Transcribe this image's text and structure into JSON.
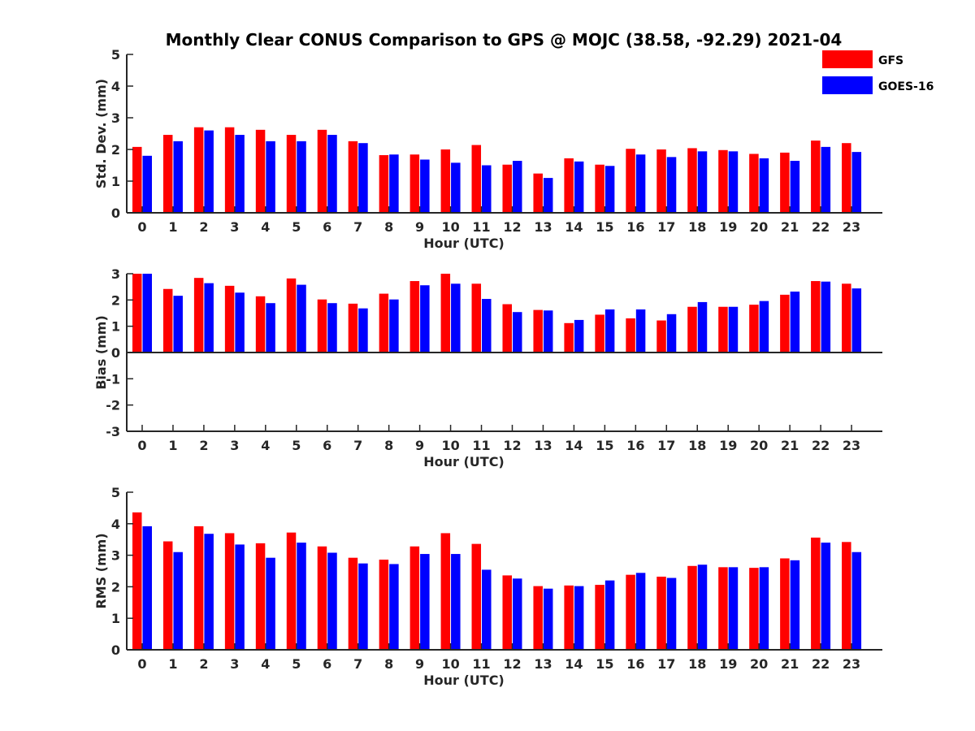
{
  "title": "Monthly Clear CONUS Comparison to GPS @ MOJC (38.58, -92.29) 2021-04",
  "legend": {
    "placement": "top-right",
    "items": [
      {
        "label": "GFS",
        "color": "#ff0000"
      },
      {
        "label": "GOES-16",
        "color": "#0000ff"
      }
    ]
  },
  "chart_data": [
    {
      "type": "bar",
      "ylabel": "Std. Dev. (mm)",
      "xlabel": "Hour (UTC)",
      "ylim": [
        0,
        5
      ],
      "yticks": [
        0,
        1,
        2,
        3,
        4,
        5
      ],
      "categories": [
        "0",
        "1",
        "2",
        "3",
        "4",
        "5",
        "6",
        "7",
        "8",
        "9",
        "10",
        "11",
        "12",
        "13",
        "14",
        "15",
        "16",
        "17",
        "18",
        "19",
        "20",
        "21",
        "22",
        "23"
      ],
      "series": [
        {
          "name": "GFS",
          "color": "#ff0000",
          "values": [
            2.08,
            2.46,
            2.7,
            2.7,
            2.62,
            2.46,
            2.62,
            2.26,
            1.82,
            1.84,
            2.0,
            2.14,
            1.52,
            1.24,
            1.72,
            1.52,
            2.02,
            2.0,
            2.04,
            1.98,
            1.86,
            1.9,
            2.28,
            2.2
          ]
        },
        {
          "name": "GOES-16",
          "color": "#0000ff",
          "values": [
            1.8,
            2.26,
            2.6,
            2.46,
            2.26,
            2.26,
            2.46,
            2.2,
            1.84,
            1.68,
            1.58,
            1.5,
            1.64,
            1.1,
            1.62,
            1.48,
            1.84,
            1.76,
            1.94,
            1.94,
            1.72,
            1.64,
            2.08,
            1.92
          ]
        }
      ]
    },
    {
      "type": "bar",
      "ylabel": "Bias (mm)",
      "xlabel": "Hour (UTC)",
      "ylim": [
        -3,
        3
      ],
      "yticks": [
        -3,
        -2,
        -1,
        0,
        1,
        2,
        3
      ],
      "categories": [
        "0",
        "1",
        "2",
        "3",
        "4",
        "5",
        "6",
        "7",
        "8",
        "9",
        "10",
        "11",
        "12",
        "13",
        "14",
        "15",
        "16",
        "17",
        "18",
        "19",
        "20",
        "21",
        "22",
        "23"
      ],
      "series": [
        {
          "name": "GFS",
          "color": "#ff0000",
          "values": [
            3.0,
            2.42,
            2.84,
            2.54,
            2.14,
            2.82,
            2.02,
            1.86,
            2.24,
            2.72,
            3.0,
            2.62,
            1.84,
            1.62,
            1.12,
            1.44,
            1.3,
            1.22,
            1.74,
            1.74,
            1.82,
            2.2,
            2.72,
            2.62
          ]
        },
        {
          "name": "GOES-16",
          "color": "#0000ff",
          "values": [
            3.0,
            2.16,
            2.64,
            2.28,
            1.88,
            2.58,
            1.88,
            1.68,
            2.02,
            2.56,
            2.62,
            2.04,
            1.54,
            1.6,
            1.24,
            1.64,
            1.64,
            1.46,
            1.92,
            1.74,
            1.96,
            2.32,
            2.7,
            2.44
          ]
        }
      ]
    },
    {
      "type": "bar",
      "ylabel": "RMS (mm)",
      "xlabel": "Hour (UTC)",
      "ylim": [
        0,
        5
      ],
      "yticks": [
        0,
        1,
        2,
        3,
        4,
        5
      ],
      "categories": [
        "0",
        "1",
        "2",
        "3",
        "4",
        "5",
        "6",
        "7",
        "8",
        "9",
        "10",
        "11",
        "12",
        "13",
        "14",
        "15",
        "16",
        "17",
        "18",
        "19",
        "20",
        "21",
        "22",
        "23"
      ],
      "series": [
        {
          "name": "GFS",
          "color": "#ff0000",
          "values": [
            4.36,
            3.44,
            3.92,
            3.7,
            3.38,
            3.72,
            3.28,
            2.92,
            2.86,
            3.28,
            3.7,
            3.36,
            2.36,
            2.02,
            2.04,
            2.06,
            2.38,
            2.32,
            2.66,
            2.62,
            2.6,
            2.9,
            3.56,
            3.42
          ]
        },
        {
          "name": "GOES-16",
          "color": "#0000ff",
          "values": [
            3.92,
            3.1,
            3.68,
            3.34,
            2.92,
            3.4,
            3.08,
            2.74,
            2.72,
            3.04,
            3.04,
            2.54,
            2.26,
            1.94,
            2.02,
            2.2,
            2.44,
            2.28,
            2.7,
            2.62,
            2.62,
            2.84,
            3.4,
            3.1
          ]
        }
      ]
    }
  ]
}
